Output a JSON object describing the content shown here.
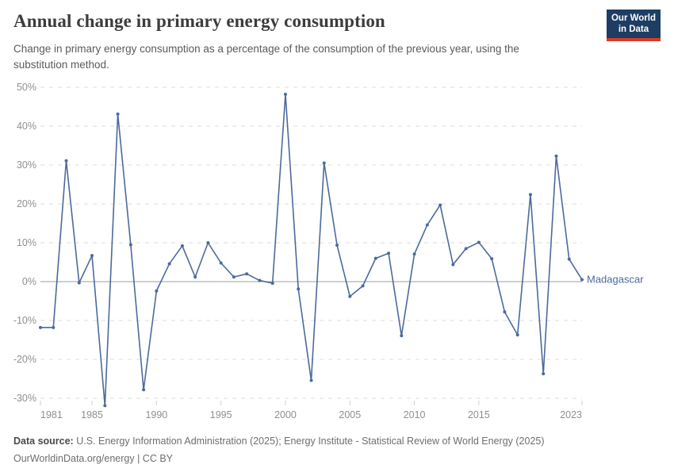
{
  "header": {
    "title": "Annual change in primary energy consumption",
    "subtitle": "Change in primary energy consumption as a percentage of the consumption of the previous year, using the substitution method.",
    "logo_line1": "Our World",
    "logo_line2": "in Data"
  },
  "colors": {
    "line": "#4c6a9c",
    "grid": "#dcdcdc",
    "zero_line": "#9c9c9c",
    "tick_text": "#8f8f8f",
    "logo_bg": "#1d3d63",
    "logo_red": "#d93a2d"
  },
  "chart_data": {
    "type": "line",
    "title": "Annual change in primary energy consumption",
    "xlabel": "",
    "ylabel": "",
    "ylim": [
      -32,
      50
    ],
    "xlim": [
      1981,
      2023
    ],
    "grid": true,
    "legend_position": "end-of-line-label",
    "y_ticks": [
      50,
      40,
      30,
      20,
      10,
      0,
      -10,
      -20,
      -30
    ],
    "y_tick_suffix": "%",
    "x_ticks": [
      1981,
      1985,
      1990,
      1995,
      2000,
      2005,
      2010,
      2015,
      2023
    ],
    "series": [
      {
        "name": "Madagascar",
        "x": [
          1981,
          1982,
          1983,
          1984,
          1985,
          1986,
          1987,
          1988,
          1989,
          1990,
          1991,
          1992,
          1993,
          1994,
          1995,
          1996,
          1997,
          1998,
          1999,
          2000,
          2001,
          2002,
          2003,
          2004,
          2005,
          2006,
          2007,
          2008,
          2009,
          2010,
          2011,
          2012,
          2013,
          2014,
          2015,
          2016,
          2017,
          2018,
          2019,
          2020,
          2021,
          2022,
          2023
        ],
        "values": [
          -11.8,
          -11.8,
          31.1,
          -0.3,
          6.7,
          -31.9,
          43.1,
          9.5,
          -27.8,
          -2.4,
          4.6,
          9.2,
          1.2,
          10.0,
          4.8,
          1.2,
          2.0,
          0.3,
          -0.4,
          48.2,
          -1.9,
          -25.4,
          30.5,
          9.4,
          -3.8,
          -1.1,
          6.0,
          7.3,
          -13.9,
          7.1,
          14.6,
          19.7,
          4.4,
          8.5,
          10.1,
          5.9,
          -7.8,
          -13.7,
          22.4,
          -23.7,
          32.3,
          5.8,
          0.5
        ]
      }
    ]
  },
  "footer": {
    "source_label": "Data source:",
    "source_text": " U.S. Energy Information Administration (2025); Energy Institute - Statistical Review of World Energy (2025)",
    "license": "OurWorldinData.org/energy | CC BY"
  }
}
